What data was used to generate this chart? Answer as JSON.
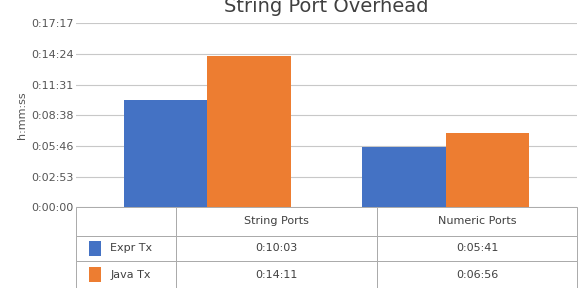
{
  "title": "String Port Overhead",
  "categories": [
    "String Ports",
    "Numeric Ports"
  ],
  "series": [
    {
      "label": "Expr Tx",
      "color": "#4472C4",
      "values_seconds": [
        603,
        341
      ]
    },
    {
      "label": "Java Tx",
      "color": "#ED7D31",
      "values_seconds": [
        851,
        416
      ]
    }
  ],
  "ylabel": "h:mm:ss",
  "yticks_seconds": [
    0,
    173,
    346,
    518,
    691,
    864,
    1037
  ],
  "ytick_labels": [
    "0:00:00",
    "0:02:53",
    "0:05:46",
    "0:08:38",
    "0:11:31",
    "0:14:24",
    "0:17:17"
  ],
  "table_header": [
    "",
    "String Ports",
    "Numeric Ports"
  ],
  "table_rows": [
    [
      "Expr Tx",
      "0:10:03",
      "0:05:41"
    ],
    [
      "Java Tx",
      "0:14:11",
      "0:06:56"
    ]
  ],
  "bar_width": 0.35,
  "background_color": "#FFFFFF",
  "grid_color": "#C8C8C8",
  "title_fontsize": 14,
  "axis_fontsize": 8,
  "tick_fontsize": 8,
  "table_fontsize": 8,
  "xlim": [
    -0.55,
    1.55
  ]
}
